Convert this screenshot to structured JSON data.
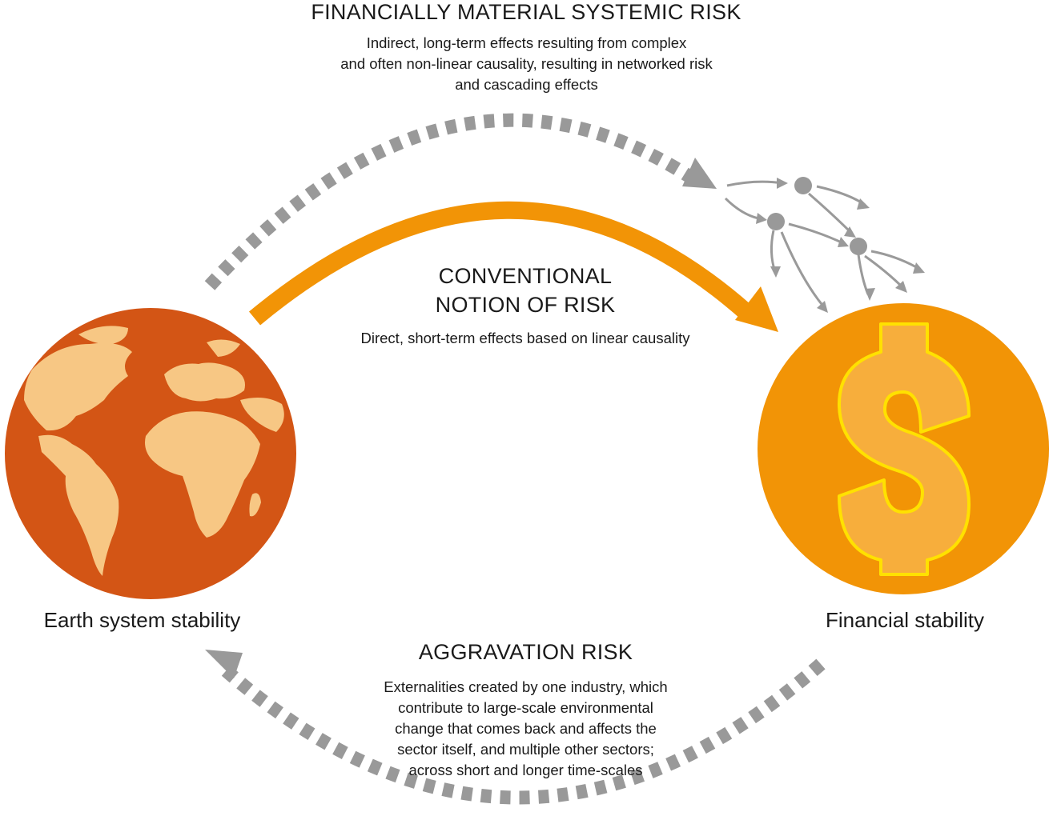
{
  "systemic_risk": {
    "title": "FINANCIALLY MATERIAL SYSTEMIC RISK",
    "description_lines": [
      "Indirect, long-term effects resulting from complex",
      "and often non-linear causality, resulting in networked risk",
      "and cascading effects"
    ]
  },
  "conventional_risk": {
    "title_lines": [
      "CONVENTIONAL",
      "NOTION OF RISK"
    ],
    "description": "Direct, short-term effects based on linear causality"
  },
  "aggravation_risk": {
    "title": "AGGRAVATION RISK",
    "description_lines": [
      "Externalities created by one industry, which",
      "contribute to large-scale environmental",
      "change that comes back and affects the",
      "sector itself, and multiple other sectors;",
      "across short and longer time-scales"
    ]
  },
  "nodes": {
    "earth_label": "Earth system stability",
    "finance_label": "Financial stability"
  },
  "icons": {
    "earth": "globe-icon",
    "finance": "dollar-coin-icon"
  },
  "colors": {
    "earth_ocean": "#d35515",
    "earth_land": "#f7c784",
    "coin": "#f29406",
    "dollar_fill": "#f7ae3c",
    "dollar_outline": "#ffe100",
    "conventional_arrow": "#f29406",
    "dashed_arrow": "#999999"
  }
}
